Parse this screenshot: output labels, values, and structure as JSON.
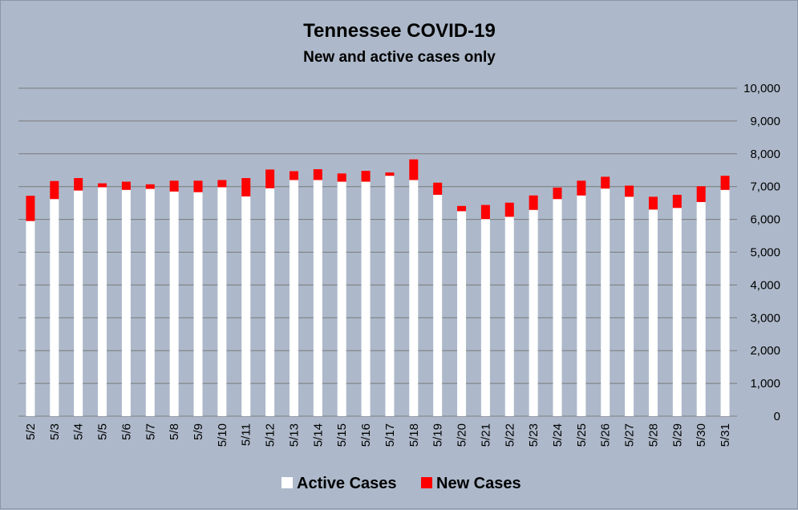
{
  "chart_data": {
    "type": "bar",
    "stacked": true,
    "title": "Tennessee COVID-19",
    "subtitle": "New and active cases only",
    "xlabel": "",
    "ylabel": "",
    "ylim": [
      0,
      10000
    ],
    "yticks": [
      0,
      1000,
      2000,
      3000,
      4000,
      5000,
      6000,
      7000,
      8000,
      9000,
      10000
    ],
    "ytick_labels": [
      "0",
      "1,000",
      "2,000",
      "3,000",
      "4,000",
      "5,000",
      "6,000",
      "7,000",
      "8,000",
      "9,000",
      "10,000"
    ],
    "y_axis_side": "right",
    "grid": true,
    "legend_position": "bottom",
    "categories": [
      "5/2",
      "5/3",
      "5/4",
      "5/5",
      "5/6",
      "5/7",
      "5/8",
      "5/9",
      "5/10",
      "5/11",
      "5/12",
      "5/13",
      "5/14",
      "5/15",
      "5/16",
      "5/17",
      "5/18",
      "5/19",
      "5/20",
      "5/21",
      "5/22",
      "5/23",
      "5/24",
      "5/25",
      "5/26",
      "5/27",
      "5/28",
      "5/29",
      "5/30",
      "5/31"
    ],
    "series": [
      {
        "name": "Active Cases",
        "color": "#ffffff",
        "values": [
          5950,
          6620,
          6880,
          6980,
          6900,
          6930,
          6850,
          6830,
          6980,
          6700,
          6950,
          7200,
          7200,
          7150,
          7150,
          7330,
          7200,
          6750,
          6250,
          6010,
          6080,
          6290,
          6620,
          6730,
          6940,
          6690,
          6300,
          6350,
          6530,
          6900
        ]
      },
      {
        "name": "New Cases",
        "color": "#ff0000",
        "values": [
          770,
          550,
          380,
          120,
          250,
          140,
          330,
          350,
          220,
          560,
          570,
          270,
          330,
          250,
          330,
          100,
          630,
          370,
          160,
          430,
          430,
          440,
          350,
          450,
          360,
          340,
          390,
          400,
          480,
          430
        ]
      }
    ]
  }
}
